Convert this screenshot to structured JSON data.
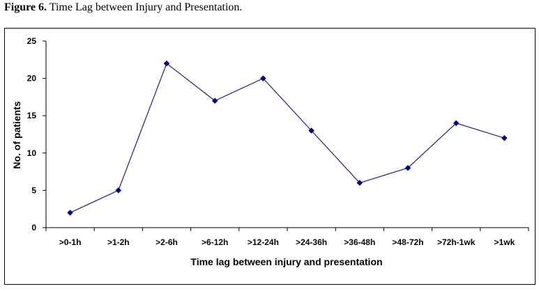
{
  "figure": {
    "label": "Figure 6.",
    "title": "Time Lag between Injury and Presentation."
  },
  "chart_data": {
    "type": "line",
    "categories": [
      ">0-1h",
      ">1-2h",
      ">2-6h",
      ">6-12h",
      ">12-24h",
      ">24-36h",
      ">36-48h",
      ">48-72h",
      ">72h-1wk",
      ">1wk"
    ],
    "series": [
      {
        "values": [
          2,
          5,
          22,
          17,
          20,
          13,
          6,
          8,
          14,
          12
        ]
      }
    ],
    "xlabel": "Time lag between injury and presentation",
    "ylabel": "No. of patients",
    "ylim": [
      0,
      25
    ],
    "yticks": [
      0,
      5,
      10,
      15,
      20,
      25
    ],
    "grid": false,
    "legend": "none",
    "colors": {
      "line": "#1f1f7a",
      "marker": "#00007f",
      "axis": "#000000"
    }
  }
}
